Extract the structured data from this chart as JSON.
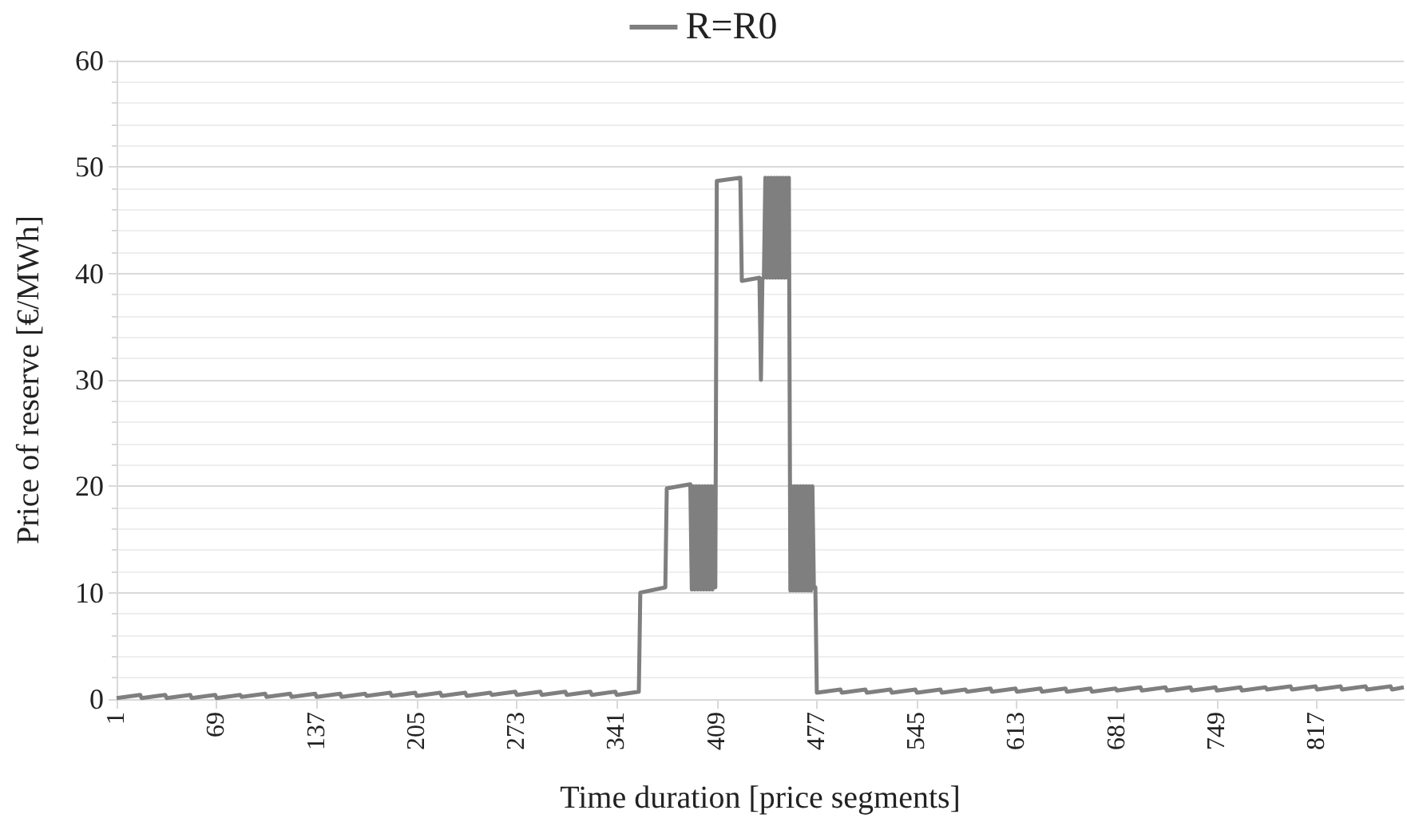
{
  "chart_data": {
    "type": "line",
    "xlabel": "Time duration [price segments]",
    "ylabel": "Price of reserve [€/MWh]",
    "xlim": [
      1,
      876
    ],
    "xticks": [
      1,
      69,
      137,
      205,
      273,
      341,
      409,
      477,
      545,
      613,
      681,
      749,
      817
    ],
    "ylim": [
      0,
      60
    ],
    "yticks": [
      0,
      10,
      20,
      30,
      40,
      50,
      60
    ],
    "grid": "y",
    "legend": "top",
    "marker": "none",
    "line_style": "solid",
    "series": [
      {
        "name": "R=R0",
        "color": "#7f7f7f",
        "x": [
          1,
          17,
          18,
          34,
          35,
          51,
          52,
          68,
          69,
          85,
          86,
          102,
          103,
          119,
          120,
          136,
          137,
          153,
          154,
          170,
          171,
          187,
          188,
          204,
          205,
          221,
          222,
          238,
          239,
          255,
          256,
          272,
          273,
          289,
          290,
          306,
          307,
          323,
          324,
          340,
          341,
          356,
          357,
          374,
          375,
          391,
          392,
          393,
          394,
          395,
          396,
          397,
          398,
          399,
          400,
          401,
          402,
          403,
          404,
          405,
          406,
          407,
          408,
          409,
          425,
          426,
          438,
          439,
          440,
          441,
          442,
          443,
          444,
          445,
          446,
          447,
          448,
          449,
          450,
          451,
          452,
          453,
          454,
          455,
          456,
          457,
          458,
          459,
          460,
          461,
          462,
          463,
          464,
          465,
          466,
          467,
          468,
          469,
          470,
          471,
          472,
          473,
          474,
          475,
          476,
          477,
          493,
          494,
          510,
          511,
          527,
          528,
          544,
          545,
          561,
          562,
          578,
          579,
          595,
          596,
          612,
          613,
          629,
          630,
          646,
          647,
          663,
          664,
          680,
          681,
          697,
          698,
          714,
          715,
          731,
          732,
          748,
          749,
          765,
          766,
          782,
          783,
          799,
          800,
          816,
          817,
          833,
          834,
          850,
          851,
          867,
          868,
          876
        ],
        "values": [
          0.1,
          0.4,
          0.1,
          0.4,
          0.1,
          0.4,
          0.1,
          0.4,
          0.1,
          0.4,
          0.2,
          0.5,
          0.2,
          0.5,
          0.2,
          0.5,
          0.2,
          0.5,
          0.2,
          0.5,
          0.3,
          0.6,
          0.3,
          0.6,
          0.3,
          0.6,
          0.3,
          0.6,
          0.3,
          0.6,
          0.4,
          0.7,
          0.4,
          0.7,
          0.4,
          0.7,
          0.4,
          0.7,
          0.4,
          0.7,
          0.4,
          0.7,
          10,
          10.5,
          19.8,
          20.2,
          10.3,
          20,
          10.3,
          20,
          10.3,
          20,
          10.3,
          20,
          10.3,
          20,
          10.3,
          20,
          10.3,
          20,
          10.3,
          20,
          10.5,
          48.7,
          49,
          39.3,
          39.6,
          30,
          39.5,
          39.6,
          49,
          39.6,
          49,
          39.6,
          49,
          39.6,
          49,
          39.6,
          49,
          39.6,
          49,
          39.6,
          49,
          39.6,
          49,
          39.6,
          49,
          10.2,
          20,
          10.2,
          20,
          10.2,
          20,
          10.2,
          20,
          10.2,
          20,
          10.2,
          20,
          10.2,
          20,
          10.2,
          20,
          10.4,
          10.5,
          0.6,
          0.9,
          0.6,
          0.9,
          0.6,
          0.9,
          0.6,
          0.9,
          0.6,
          0.9,
          0.6,
          0.9,
          0.7,
          1,
          0.7,
          1,
          0.7,
          1,
          0.7,
          1,
          0.7,
          1,
          0.7,
          1,
          0.8,
          1.1,
          0.8,
          1.1,
          0.8,
          1.1,
          0.8,
          1.1,
          0.8,
          1.1,
          0.8,
          1.1,
          0.9,
          1.2,
          0.9,
          1.2,
          0.9,
          1.2,
          0.9,
          1.2,
          0.9,
          1.2,
          0.9,
          1.1
        ]
      }
    ]
  }
}
